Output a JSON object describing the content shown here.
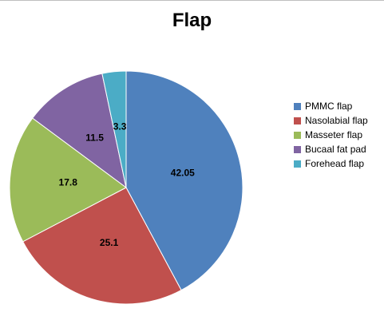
{
  "chart_data": {
    "type": "pie",
    "title": "Flap",
    "categories": [
      "PMMC flap",
      "Nasolabial flap",
      "Masseter flap",
      "Bucaal fat pad",
      "Forehead flap"
    ],
    "values": [
      42.05,
      25.1,
      17.8,
      11.5,
      3.3
    ],
    "colors": [
      "#4F81BD",
      "#C0504D",
      "#9BBB59",
      "#8064A2",
      "#4BACC6"
    ],
    "data_labels": [
      "42.05",
      "25.1",
      "17.8",
      "11.5",
      "3.3"
    ],
    "legend_position": "right",
    "start_angle": "12 o'clock",
    "direction": "clockwise"
  }
}
